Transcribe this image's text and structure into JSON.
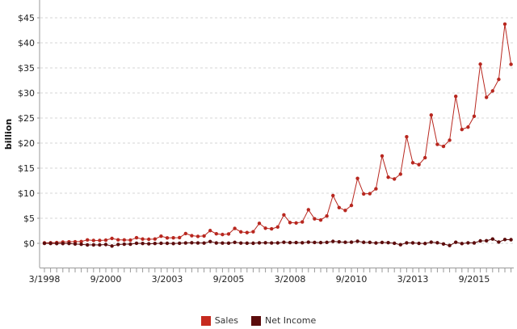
{
  "chart_data": {
    "type": "line",
    "ylabel": "billion",
    "xlabel": "",
    "ylim": [
      -5,
      48.5
    ],
    "yticks": [
      0,
      5,
      10,
      15,
      20,
      25,
      30,
      35,
      40,
      45
    ],
    "ytick_labels": [
      "$0",
      "$5",
      "$10",
      "$15",
      "$20",
      "$25",
      "$30",
      "$35",
      "$40",
      "$45"
    ],
    "xtick_labels": [
      "3/1998",
      "9/2000",
      "3/2003",
      "9/2005",
      "3/2008",
      "9/2010",
      "3/2013",
      "9/2015"
    ],
    "x_start": "3/1998",
    "x_end": "3/2017",
    "x_interval": "quarter",
    "grid": "horizontal dashed",
    "legend_position": "bottom",
    "series": [
      {
        "name": "Sales",
        "color": "#b8271f",
        "values": [
          0.088,
          0.116,
          0.154,
          0.253,
          0.294,
          0.314,
          0.356,
          0.676,
          0.574,
          0.578,
          0.638,
          0.973,
          0.701,
          0.668,
          0.639,
          1.115,
          0.847,
          0.806,
          0.851,
          1.429,
          1.084,
          1.1,
          1.134,
          1.946,
          1.53,
          1.387,
          1.462,
          2.541,
          1.902,
          1.753,
          1.858,
          2.977,
          2.279,
          2.139,
          2.307,
          3.986,
          3.015,
          2.886,
          3.262,
          5.673,
          4.135,
          4.063,
          4.264,
          6.704,
          4.889,
          4.651,
          5.449,
          9.52,
          7.131,
          6.566,
          7.56,
          12.948,
          9.857,
          9.913,
          10.876,
          17.431,
          13.185,
          12.834,
          13.806,
          21.268,
          16.07,
          15.704,
          17.092,
          25.587,
          19.741,
          19.34,
          20.579,
          29.328,
          22.717,
          23.185,
          25.358,
          35.746,
          29.128,
          30.404,
          32.714,
          43.741,
          35.714
        ]
      },
      {
        "name": "Net Income",
        "color": "#5c0c0c",
        "values": [
          -0.01,
          -0.022,
          -0.045,
          -0.047,
          -0.036,
          -0.138,
          -0.197,
          -0.323,
          -0.308,
          -0.317,
          -0.241,
          -0.545,
          -0.234,
          -0.168,
          -0.17,
          0.005,
          -0.023,
          -0.094,
          -0.035,
          0.003,
          -0.001,
          -0.043,
          0.015,
          0.073,
          0.108,
          0.076,
          0.054,
          0.347,
          0.078,
          0.052,
          0.03,
          0.199,
          0.051,
          0.022,
          0.019,
          0.098,
          0.111,
          0.078,
          0.08,
          0.207,
          0.143,
          0.158,
          0.118,
          0.225,
          0.177,
          0.142,
          0.199,
          0.384,
          0.299,
          0.207,
          0.231,
          0.416,
          0.201,
          0.191,
          0.063,
          0.177,
          0.13,
          0.007,
          -0.274,
          0.097,
          0.082,
          -0.007,
          -0.041,
          0.239,
          0.108,
          -0.126,
          -0.437,
          0.214,
          -0.057,
          0.092,
          0.079,
          0.482,
          0.513,
          0.857,
          0.252,
          0.749,
          0.724
        ]
      }
    ]
  },
  "legend": {
    "sales_label": "Sales",
    "sales_color": "#c62a1e",
    "net_income_label": "Net Income",
    "net_income_color": "#5c0c0c"
  }
}
